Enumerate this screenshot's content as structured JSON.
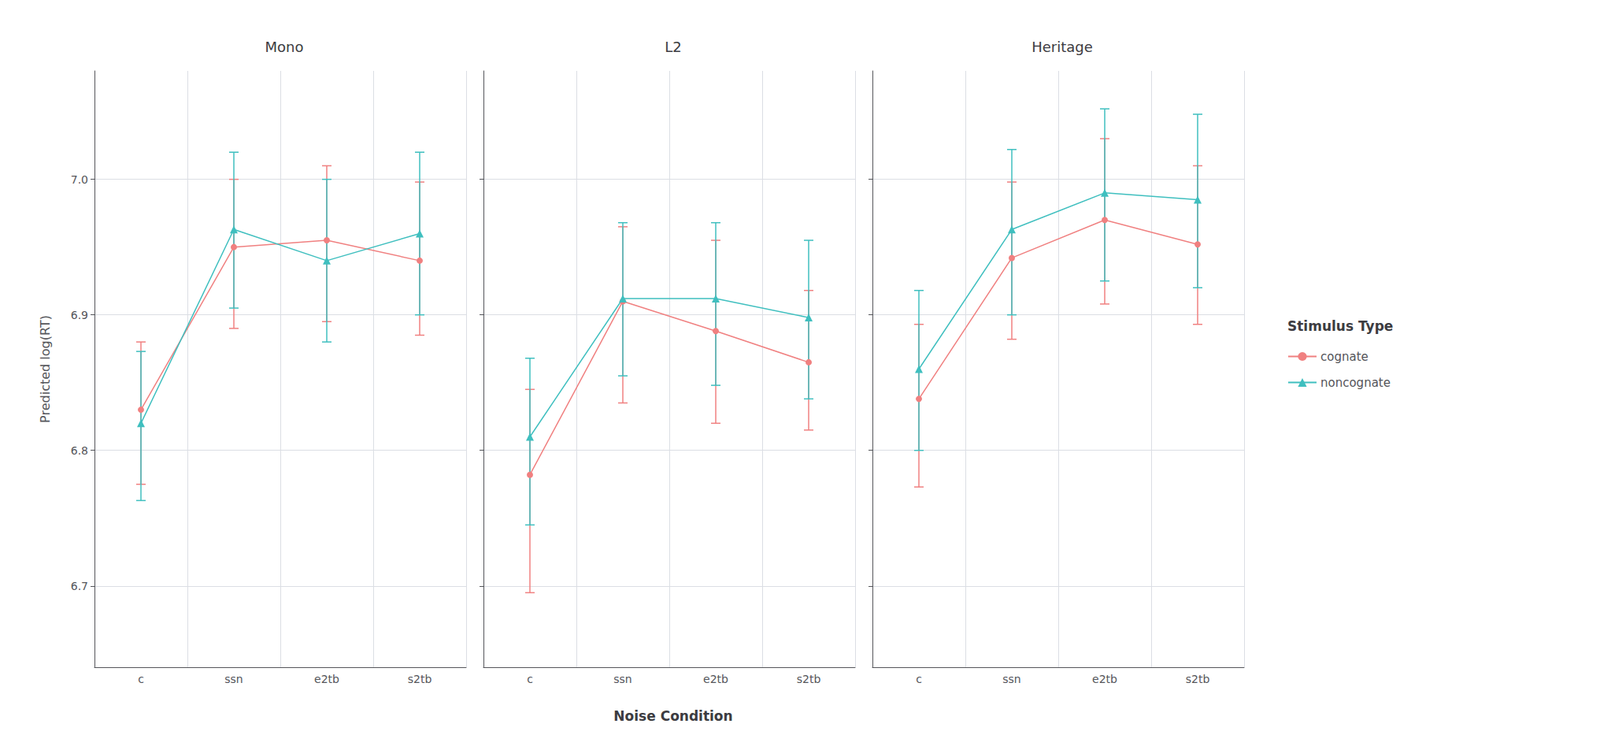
{
  "chart_data": {
    "type": "line",
    "xlabel": "Noise Condition",
    "ylabel": "Predicted log(RT)",
    "legend_title": "Stimulus Type",
    "legend": "right",
    "grid": true,
    "categories": [
      "c",
      "ssn",
      "e2tb",
      "s2tb"
    ],
    "ylim": [
      6.64,
      7.08
    ],
    "yticks": [
      6.7,
      6.8,
      6.9,
      {
        "value": 7.0,
        "label": "7.0"
      }
    ],
    "panels": [
      {
        "title": "Mono",
        "series": [
          {
            "name": "cognate",
            "color": "#F08080",
            "marker": "circle",
            "values": [
              6.83,
              6.95,
              6.955,
              6.94
            ],
            "lower": [
              6.775,
              6.89,
              6.895,
              6.885
            ],
            "upper": [
              6.88,
              7.0,
              7.01,
              6.998
            ]
          },
          {
            "name": "noncognate",
            "color": "#3FBFBF",
            "marker": "triangle",
            "values": [
              6.82,
              6.963,
              6.94,
              6.96
            ],
            "lower": [
              6.763,
              6.905,
              6.88,
              6.9
            ],
            "upper": [
              6.873,
              7.02,
              7.0,
              7.02
            ]
          }
        ]
      },
      {
        "title": "L2",
        "series": [
          {
            "name": "cognate",
            "color": "#F08080",
            "marker": "circle",
            "values": [
              6.782,
              6.91,
              6.888,
              6.865
            ],
            "lower": [
              6.695,
              6.835,
              6.82,
              6.815
            ],
            "upper": [
              6.845,
              6.965,
              6.955,
              6.918
            ]
          },
          {
            "name": "noncognate",
            "color": "#3FBFBF",
            "marker": "triangle",
            "values": [
              6.81,
              6.912,
              6.912,
              6.898
            ],
            "lower": [
              6.745,
              6.855,
              6.848,
              6.838
            ],
            "upper": [
              6.868,
              6.968,
              6.968,
              6.955
            ]
          }
        ]
      },
      {
        "title": "Heritage",
        "series": [
          {
            "name": "cognate",
            "color": "#F08080",
            "marker": "circle",
            "values": [
              6.838,
              6.942,
              6.97,
              6.952
            ],
            "lower": [
              6.773,
              6.882,
              6.908,
              6.893
            ],
            "upper": [
              6.893,
              6.998,
              7.03,
              7.01
            ]
          },
          {
            "name": "noncognate",
            "color": "#3FBFBF",
            "marker": "triangle",
            "values": [
              6.86,
              6.963,
              6.99,
              6.985
            ],
            "lower": [
              6.8,
              6.9,
              6.925,
              6.92
            ],
            "upper": [
              6.918,
              7.022,
              7.052,
              7.048
            ]
          }
        ]
      }
    ]
  }
}
